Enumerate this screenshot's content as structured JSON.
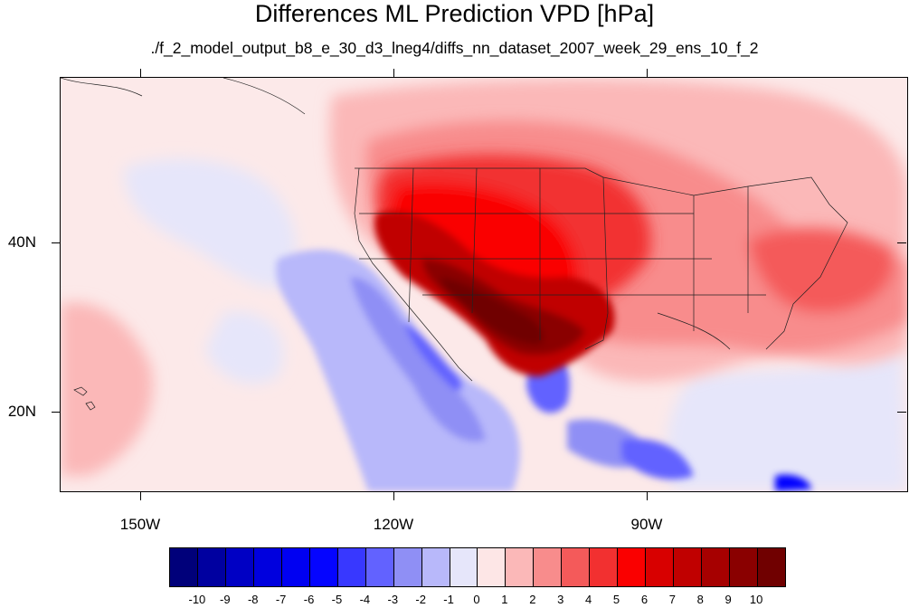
{
  "title": "Differences ML Prediction VPD [hPa]",
  "subtitle": "./f_2_model_output_b8_e_30_d3_lneg4/diffs_nn_dataset_2007_week_29_ens_10_f_2",
  "map": {
    "lat_labels": [
      "40N",
      "20N"
    ],
    "lon_labels": [
      "150W",
      "120W",
      "90W"
    ]
  },
  "colorbar": {
    "labels": [
      "-10",
      "-9",
      "-8",
      "-7",
      "-6",
      "-5",
      "-4",
      "-3",
      "-2",
      "-1",
      "0",
      "1",
      "2",
      "3",
      "4",
      "5",
      "6",
      "7",
      "8",
      "9",
      "10"
    ],
    "colors": [
      "#00007a",
      "#0000a0",
      "#0000c4",
      "#0000de",
      "#0000f2",
      "#0505ff",
      "#3838ff",
      "#6262ff",
      "#8f8ff5",
      "#b8b8fa",
      "#e6e6fa",
      "#fde6e6",
      "#fbb8b8",
      "#f88c8c",
      "#f45a5a",
      "#f23030",
      "#fa0000",
      "#d80000",
      "#c00000",
      "#a60000",
      "#8a0000",
      "#700000"
    ]
  }
}
